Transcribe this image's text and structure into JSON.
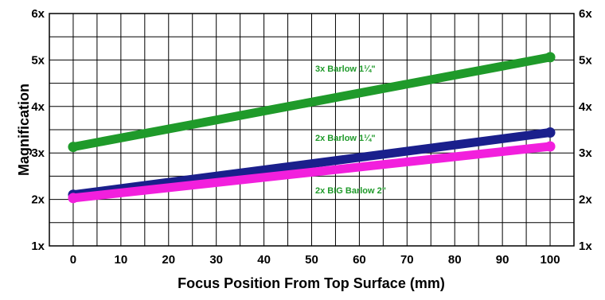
{
  "chart_data": {
    "type": "line",
    "title": "",
    "xlabel": "Focus Position From Top Surface (mm)",
    "ylabel": "Magnification",
    "xlim": [
      -5,
      105
    ],
    "ylim": [
      1,
      6
    ],
    "x_ticks": [
      0,
      10,
      20,
      30,
      40,
      50,
      60,
      70,
      80,
      90,
      100
    ],
    "x_tick_labels": [
      "0",
      "10",
      "20",
      "30",
      "40",
      "50",
      "60",
      "70",
      "80",
      "90",
      "100"
    ],
    "y_ticks": [
      1,
      2,
      3,
      4,
      5,
      6
    ],
    "y_tick_labels": [
      "1x",
      "2x",
      "3x",
      "4x",
      "5x",
      "6x"
    ],
    "y_axis_right_labels": true,
    "grid": true,
    "series": [
      {
        "name": "3x Barlow 1¼\"",
        "color": "#1f9a2a",
        "x": [
          0,
          100
        ],
        "y": [
          3.13,
          5.06
        ]
      },
      {
        "name": "2x Barlow 1¼\"",
        "color": "#1a1f8c",
        "x": [
          0,
          100
        ],
        "y": [
          2.1,
          3.44
        ]
      },
      {
        "name": "2x BIG Barlow 2\"",
        "color": "#f21fdd",
        "x": [
          0,
          100
        ],
        "y": [
          2.03,
          3.14
        ]
      }
    ],
    "annotations": [
      {
        "text": "3x Barlow 1¼\"",
        "color": "#1f9a2a"
      },
      {
        "text": "2x Barlow 1¼\"",
        "color": "#1f9a2a"
      },
      {
        "text": "2x BIG Barlow 2\"",
        "color": "#1f9a2a"
      }
    ]
  }
}
